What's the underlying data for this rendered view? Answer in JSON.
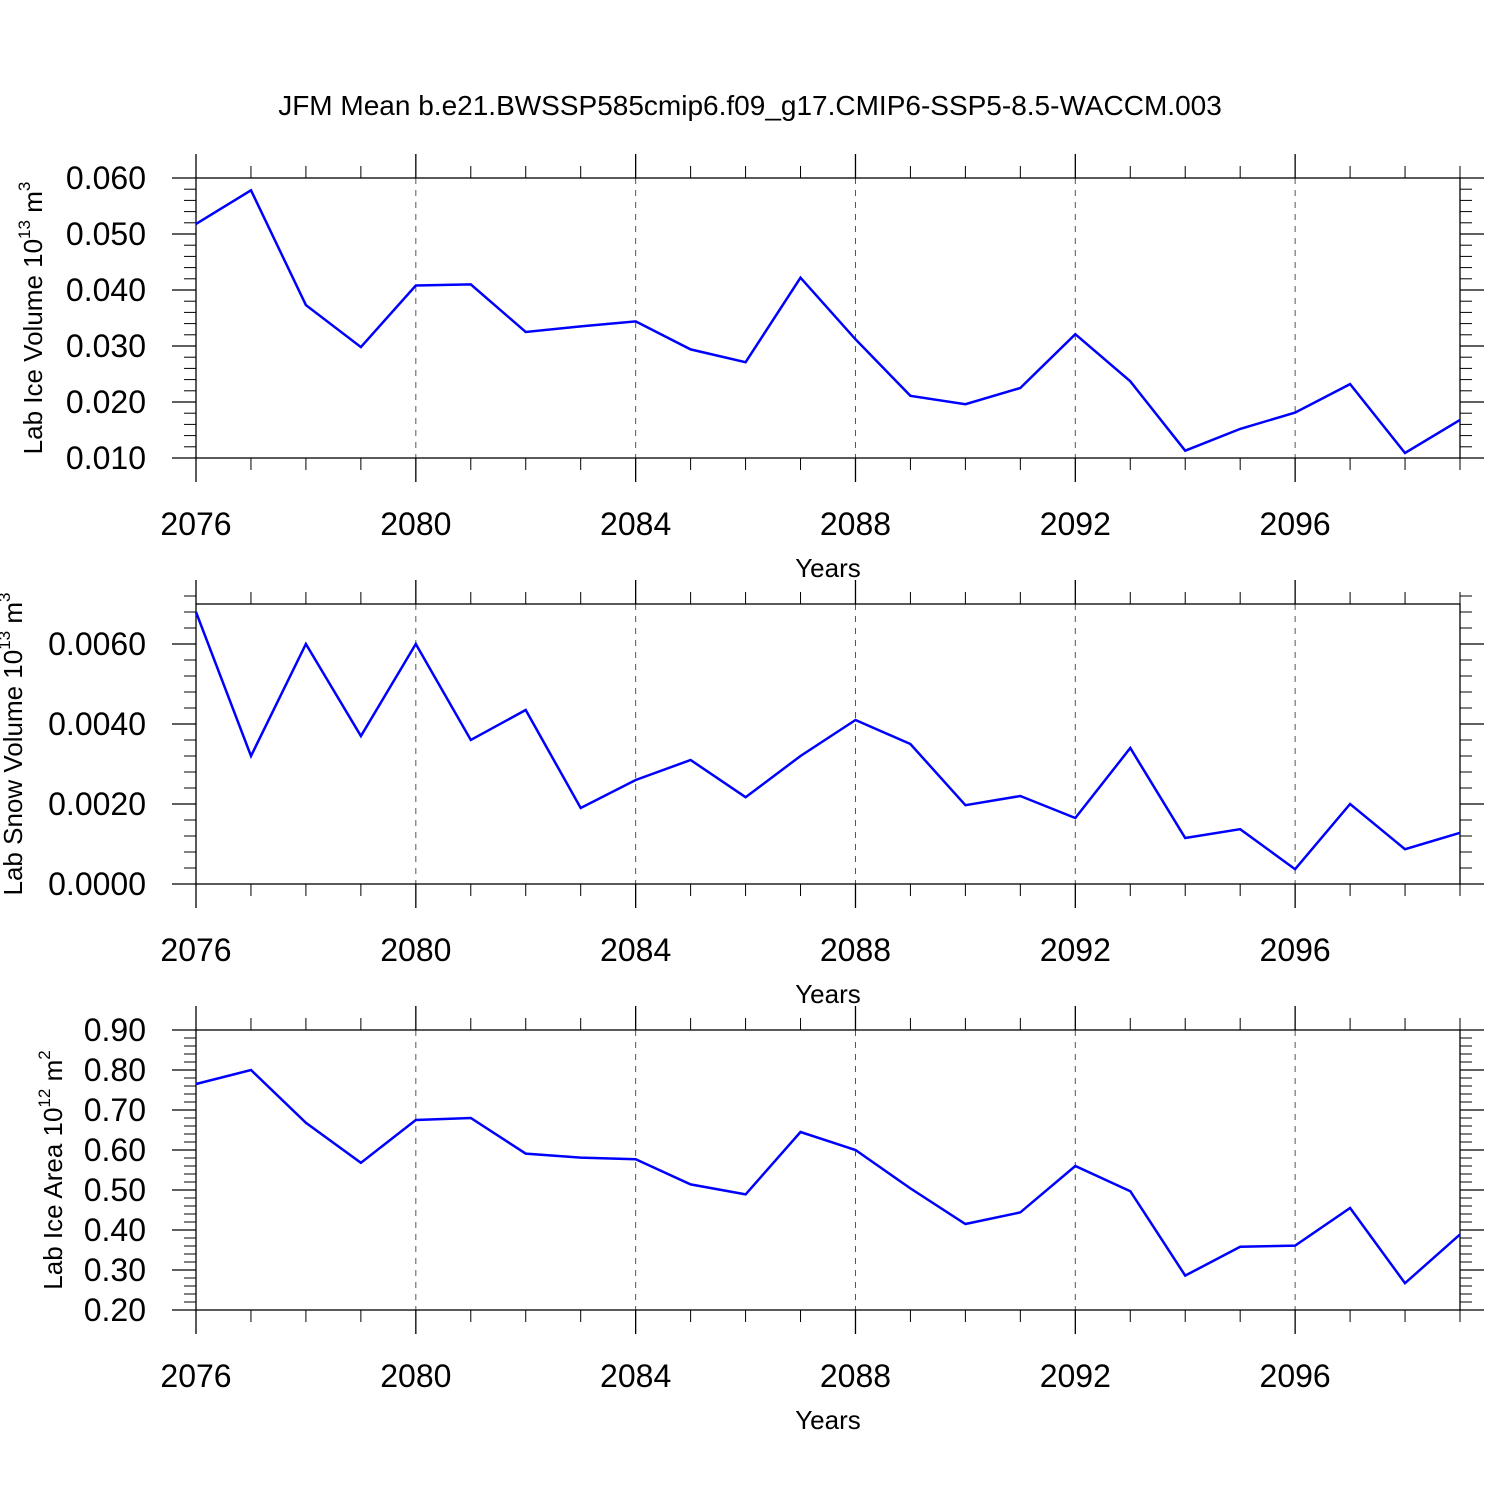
{
  "title": "JFM Mean b.e21.BWSSP585cmip6.f09_g17.CMIP6-SSP5-8.5-WACCM.003",
  "colors": {
    "line": "#0000ff",
    "grid": "#555555"
  },
  "chart_data": [
    {
      "type": "line",
      "ylabel_main": "Lab Ice Volume 10",
      "ylabel_exp": "13",
      "ylabel_unit": " m",
      "ylabel_unit_exp": "3",
      "xlabel": "Years",
      "xlim": [
        2076,
        2099
      ],
      "ylim": [
        0.01,
        0.06
      ],
      "xticks": [
        2076,
        2080,
        2084,
        2088,
        2092,
        2096
      ],
      "xtick_labels": [
        "2076",
        "2080",
        "2084",
        "2088",
        "2092",
        "2096"
      ],
      "yticks": [
        0.01,
        0.02,
        0.03,
        0.04,
        0.05,
        0.06
      ],
      "ytick_labels": [
        "0.010",
        "0.020",
        "0.030",
        "0.040",
        "0.050",
        "0.060"
      ],
      "grid_x": true,
      "x": [
        2076,
        2077,
        2078,
        2079,
        2080,
        2081,
        2082,
        2083,
        2084,
        2085,
        2086,
        2087,
        2088,
        2089,
        2090,
        2091,
        2092,
        2093,
        2094,
        2095,
        2096,
        2097,
        2098,
        2099
      ],
      "values": [
        0.0518,
        0.0578,
        0.0373,
        0.0298,
        0.0408,
        0.041,
        0.0325,
        0.0335,
        0.0344,
        0.0294,
        0.0271,
        0.0422,
        0.0312,
        0.0211,
        0.0196,
        0.0225,
        0.0321,
        0.0237,
        0.0113,
        0.0152,
        0.0181,
        0.0232,
        0.0109,
        0.0168
      ]
    },
    {
      "type": "line",
      "ylabel_main": "Lab Snow Volume 10",
      "ylabel_exp": "13",
      "ylabel_unit": " m",
      "ylabel_unit_exp": "3",
      "xlabel": "Years",
      "xlim": [
        2076,
        2099
      ],
      "ylim": [
        0.0,
        0.007
      ],
      "xticks": [
        2076,
        2080,
        2084,
        2088,
        2092,
        2096
      ],
      "xtick_labels": [
        "2076",
        "2080",
        "2084",
        "2088",
        "2092",
        "2096"
      ],
      "yticks": [
        0.0,
        0.002,
        0.004,
        0.006
      ],
      "ytick_labels": [
        "0.0000",
        "0.0020",
        "0.0040",
        "0.0060"
      ],
      "grid_x": true,
      "x": [
        2076,
        2077,
        2078,
        2079,
        2080,
        2081,
        2082,
        2083,
        2084,
        2085,
        2086,
        2087,
        2088,
        2089,
        2090,
        2091,
        2092,
        2093,
        2094,
        2095,
        2096,
        2097,
        2098,
        2099
      ],
      "values": [
        0.0068,
        0.0032,
        0.006,
        0.0037,
        0.006,
        0.0036,
        0.00435,
        0.0019,
        0.0026,
        0.0031,
        0.00217,
        0.0032,
        0.0041,
        0.0035,
        0.00197,
        0.0022,
        0.00165,
        0.0034,
        0.00115,
        0.00137,
        0.00037,
        0.002,
        0.00087,
        0.00128
      ]
    },
    {
      "type": "line",
      "ylabel_main": "Lab Ice Area 10",
      "ylabel_exp": "12",
      "ylabel_unit": " m",
      "ylabel_unit_exp": "2",
      "xlabel": "Years",
      "xlim": [
        2076,
        2099
      ],
      "ylim": [
        0.2,
        0.9
      ],
      "xticks": [
        2076,
        2080,
        2084,
        2088,
        2092,
        2096
      ],
      "xtick_labels": [
        "2076",
        "2080",
        "2084",
        "2088",
        "2092",
        "2096"
      ],
      "yticks": [
        0.2,
        0.3,
        0.4,
        0.5,
        0.6,
        0.7,
        0.8,
        0.9
      ],
      "ytick_labels": [
        "0.20",
        "0.30",
        "0.40",
        "0.50",
        "0.60",
        "0.70",
        "0.80",
        "0.90"
      ],
      "grid_x": true,
      "x": [
        2076,
        2077,
        2078,
        2079,
        2080,
        2081,
        2082,
        2083,
        2084,
        2085,
        2086,
        2087,
        2088,
        2089,
        2090,
        2091,
        2092,
        2093,
        2094,
        2095,
        2096,
        2097,
        2098,
        2099
      ],
      "values": [
        0.765,
        0.8,
        0.668,
        0.568,
        0.675,
        0.68,
        0.591,
        0.581,
        0.577,
        0.514,
        0.489,
        0.645,
        0.6,
        0.504,
        0.415,
        0.444,
        0.56,
        0.497,
        0.286,
        0.358,
        0.361,
        0.455,
        0.267,
        0.389
      ]
    }
  ]
}
